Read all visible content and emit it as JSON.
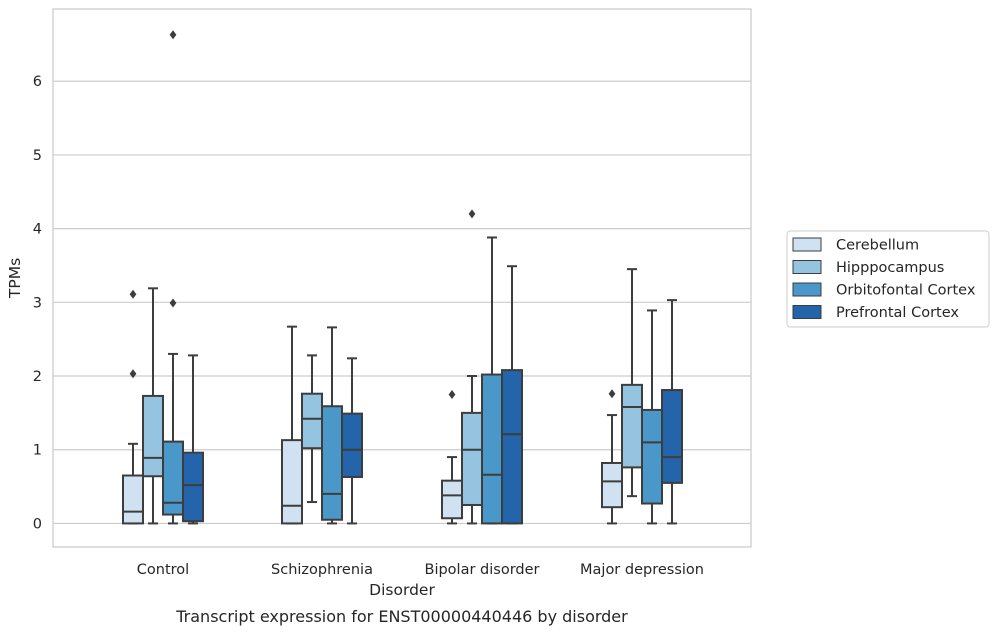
{
  "chart_data": {
    "type": "box",
    "title": "",
    "caption": "Transcript expression for ENST00000440446 by disorder",
    "xlabel": "Disorder",
    "ylabel": "TPMs",
    "ylim": [
      -0.32,
      6.98
    ],
    "yticks": [
      "0",
      "1",
      "2",
      "3",
      "4",
      "5",
      "6"
    ],
    "grid": "horizontal",
    "legend_position": "right",
    "categories": [
      "Control",
      "Schizophrenia",
      "Bipolar disorder",
      "Major depression"
    ],
    "series": [
      {
        "name": "Cerebellum",
        "color": "#d0e1f2",
        "boxes": [
          {
            "whisker_low": 0,
            "q1": 0,
            "median": 0.16,
            "q3": 0.65,
            "whisker_high": 1.08,
            "outliers": [
              2.03,
              3.11
            ]
          },
          {
            "whisker_low": 0,
            "q1": 0,
            "median": 0.24,
            "q3": 1.13,
            "whisker_high": 2.67,
            "outliers": []
          },
          {
            "whisker_low": 0,
            "q1": 0.07,
            "median": 0.38,
            "q3": 0.58,
            "whisker_high": 0.9,
            "outliers": [
              1.75
            ]
          },
          {
            "whisker_low": 0,
            "q1": 0.22,
            "median": 0.57,
            "q3": 0.82,
            "whisker_high": 1.47,
            "outliers": [
              1.76
            ]
          }
        ]
      },
      {
        "name": "Hipppocampus",
        "color": "#94c4df",
        "boxes": [
          {
            "whisker_low": 0,
            "q1": 0.64,
            "median": 0.89,
            "q3": 1.73,
            "whisker_high": 3.19,
            "outliers": []
          },
          {
            "whisker_low": 0.29,
            "q1": 1.02,
            "median": 1.42,
            "q3": 1.76,
            "whisker_high": 2.28,
            "outliers": []
          },
          {
            "whisker_low": 0,
            "q1": 0.25,
            "median": 1.0,
            "q3": 1.5,
            "whisker_high": 2.0,
            "outliers": [
              4.2
            ]
          },
          {
            "whisker_low": 0.37,
            "q1": 0.76,
            "median": 1.58,
            "q3": 1.88,
            "whisker_high": 3.45,
            "outliers": []
          }
        ]
      },
      {
        "name": "Orbitofontal Cortex",
        "color": "#4a98c9",
        "boxes": [
          {
            "whisker_low": 0,
            "q1": 0.12,
            "median": 0.28,
            "q3": 1.11,
            "whisker_high": 2.3,
            "outliers": [
              2.99,
              6.63
            ]
          },
          {
            "whisker_low": 0,
            "q1": 0.05,
            "median": 0.4,
            "q3": 1.59,
            "whisker_high": 2.66,
            "outliers": []
          },
          {
            "whisker_low": 0,
            "q1": 0,
            "median": 0.66,
            "q3": 2.02,
            "whisker_high": 3.88,
            "outliers": []
          },
          {
            "whisker_low": 0,
            "q1": 0.27,
            "median": 1.1,
            "q3": 1.54,
            "whisker_high": 2.89,
            "outliers": []
          }
        ]
      },
      {
        "name": "Prefrontal Cortex",
        "color": "#2364aa",
        "boxes": [
          {
            "whisker_low": 0,
            "q1": 0.03,
            "median": 0.52,
            "q3": 0.96,
            "whisker_high": 2.28,
            "outliers": []
          },
          {
            "whisker_low": 0,
            "q1": 0.63,
            "median": 1.0,
            "q3": 1.49,
            "whisker_high": 2.24,
            "outliers": []
          },
          {
            "whisker_low": 0,
            "q1": 0,
            "median": 1.21,
            "q3": 2.08,
            "whisker_high": 3.49,
            "outliers": []
          },
          {
            "whisker_low": 0,
            "q1": 0.55,
            "median": 0.9,
            "q3": 1.81,
            "whisker_high": 3.03,
            "outliers": []
          }
        ]
      }
    ]
  }
}
